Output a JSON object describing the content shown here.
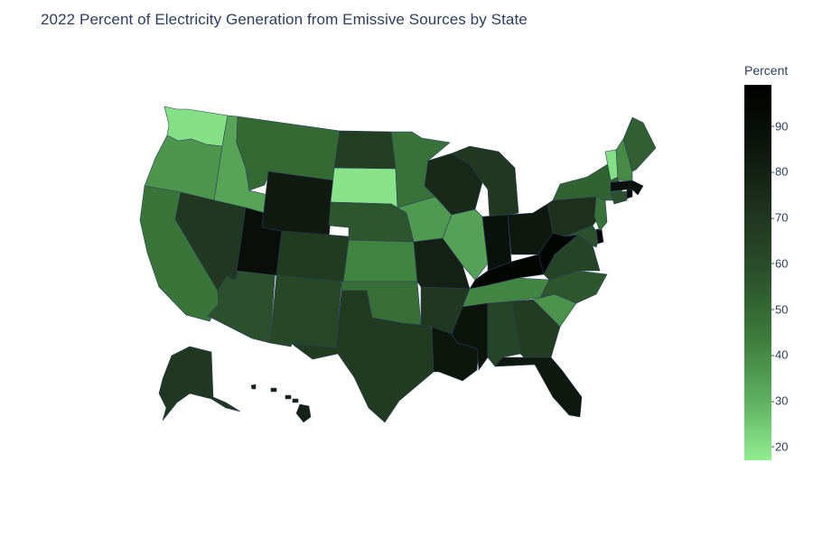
{
  "title": "2022 Percent of Electricity Generation from Emissive Sources by State",
  "colorbar": {
    "title": "Percent",
    "min": 17,
    "max": 99,
    "ticks": [
      "20",
      "30",
      "40",
      "50",
      "60",
      "70",
      "80",
      "90"
    ],
    "colors": [
      "#90ee90",
      "#5dad5d",
      "#3b7a3b",
      "#2b502b",
      "#1e331e",
      "#0d150d",
      "#000000"
    ]
  },
  "states": [
    {
      "id": "WA",
      "value": 20
    },
    {
      "id": "OR",
      "value": 37
    },
    {
      "id": "CA",
      "value": 46
    },
    {
      "id": "ID",
      "value": 33
    },
    {
      "id": "NV",
      "value": 70
    },
    {
      "id": "AZ",
      "value": 58
    },
    {
      "id": "UT",
      "value": 90
    },
    {
      "id": "MT",
      "value": 50
    },
    {
      "id": "WY",
      "value": 83
    },
    {
      "id": "CO",
      "value": 68
    },
    {
      "id": "NM",
      "value": 62
    },
    {
      "id": "ND",
      "value": 66
    },
    {
      "id": "SD",
      "value": 19
    },
    {
      "id": "NE",
      "value": 56
    },
    {
      "id": "KS",
      "value": 42
    },
    {
      "id": "OK",
      "value": 48
    },
    {
      "id": "TX",
      "value": 68
    },
    {
      "id": "MN",
      "value": 47
    },
    {
      "id": "IA",
      "value": 36
    },
    {
      "id": "MO",
      "value": 80
    },
    {
      "id": "AR",
      "value": 70
    },
    {
      "id": "LA",
      "value": 85
    },
    {
      "id": "WI",
      "value": 76
    },
    {
      "id": "IL",
      "value": 34
    },
    {
      "id": "MI",
      "value": 70
    },
    {
      "id": "IN",
      "value": 88
    },
    {
      "id": "OH",
      "value": 84
    },
    {
      "id": "KY",
      "value": 96
    },
    {
      "id": "TN",
      "value": 41
    },
    {
      "id": "MS",
      "value": 86
    },
    {
      "id": "AL",
      "value": 63
    },
    {
      "id": "GA",
      "value": 67
    },
    {
      "id": "FL",
      "value": 84
    },
    {
      "id": "SC",
      "value": 38
    },
    {
      "id": "NC",
      "value": 56
    },
    {
      "id": "VA",
      "value": 64
    },
    {
      "id": "WV",
      "value": 96
    },
    {
      "id": "MD",
      "value": 58
    },
    {
      "id": "DE",
      "value": 95
    },
    {
      "id": "PA",
      "value": 73
    },
    {
      "id": "NJ",
      "value": 47
    },
    {
      "id": "NY",
      "value": 52
    },
    {
      "id": "CT",
      "value": 58
    },
    {
      "id": "RI",
      "value": 92
    },
    {
      "id": "MA",
      "value": 88
    },
    {
      "id": "VT",
      "value": 20
    },
    {
      "id": "NH",
      "value": 40
    },
    {
      "id": "ME",
      "value": 53
    },
    {
      "id": "AK",
      "value": 70
    },
    {
      "id": "HI",
      "value": 80
    }
  ]
}
